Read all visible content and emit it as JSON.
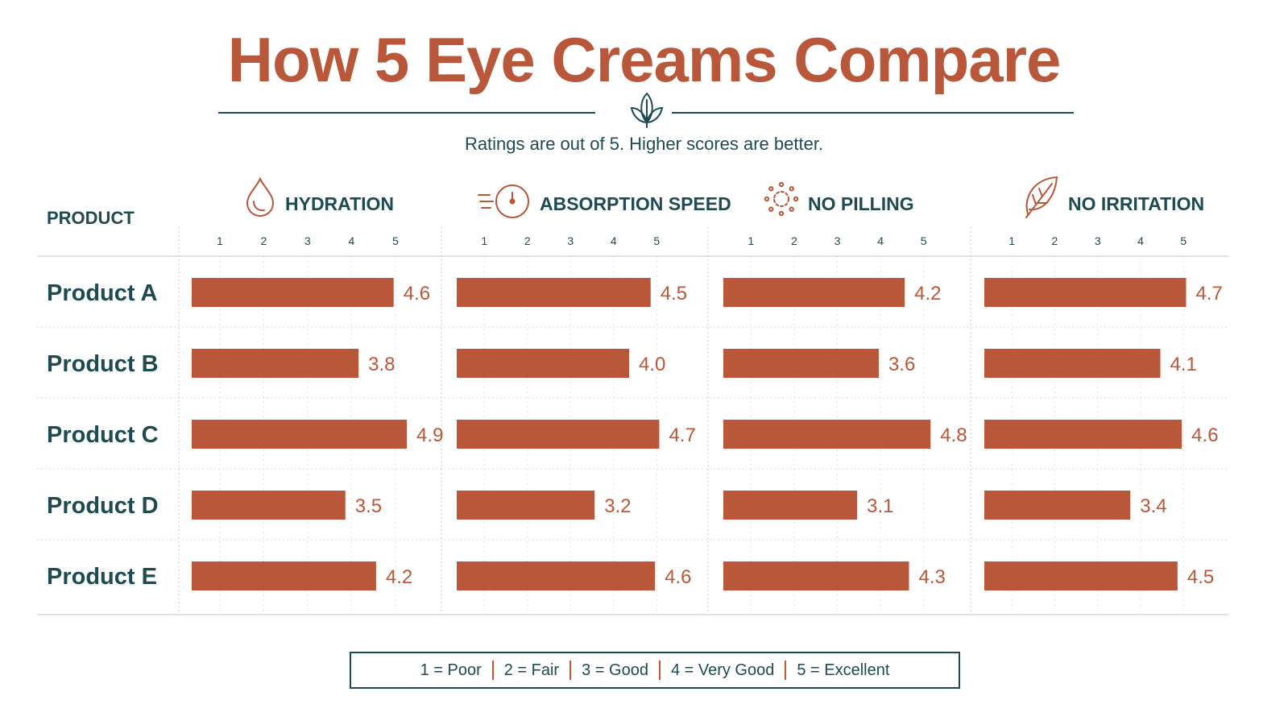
{
  "title": "How 5 Eye Creams Compare",
  "subtitle": "Ratings are out of 5. Higher scores are better.",
  "colors": {
    "accent": "#b9573a",
    "dark": "#1e4a52",
    "grid": "#d8d8d8",
    "sep": "#c8562f"
  },
  "header": {
    "product_label": "PRODUCT"
  },
  "legend": {
    "items": [
      "1 = Poor",
      "2 = Fair",
      "3 = Good",
      "4 = Very Good",
      "5 = Excellent"
    ],
    "separator": "|"
  },
  "chart_data": {
    "type": "bar",
    "orientation": "horizontal",
    "categories": [
      "Product A",
      "Product B",
      "Product C",
      "Product D",
      "Product E"
    ],
    "xlim": [
      0,
      5
    ],
    "ticks": [
      "1",
      "2",
      "3",
      "4",
      "5"
    ],
    "grid": true,
    "series": [
      {
        "name": "HYDRATION",
        "icon": "water-drop-icon",
        "values": [
          4.6,
          3.8,
          4.9,
          3.5,
          4.2
        ]
      },
      {
        "name": "ABSORPTION SPEED",
        "icon": "speed-gauge-icon",
        "values": [
          4.5,
          4.0,
          4.7,
          3.2,
          4.6
        ]
      },
      {
        "name": "NO PILLING",
        "icon": "dotted-circle-icon",
        "values": [
          4.2,
          3.6,
          4.8,
          3.1,
          4.3
        ]
      },
      {
        "name": "NO IRRITATION",
        "icon": "leaf-icon",
        "values": [
          4.7,
          4.1,
          4.6,
          3.4,
          4.5
        ]
      }
    ]
  }
}
